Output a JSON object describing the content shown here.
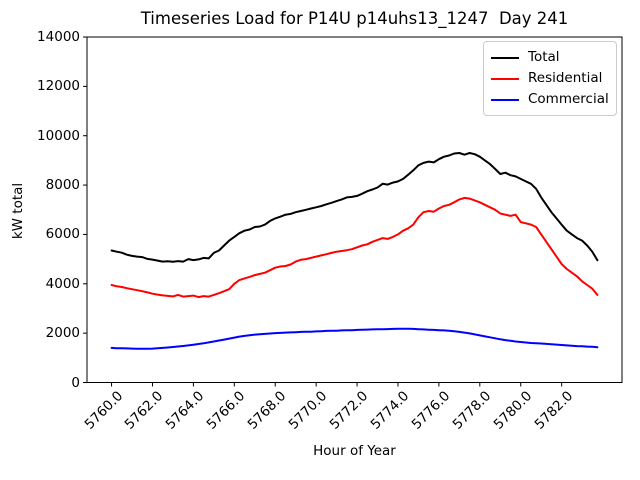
{
  "chart_data": {
    "type": "line",
    "title": "Timeseries Load for P14U p14uhs13_1247  Day 241",
    "xlabel": "Hour of Year",
    "ylabel": "kW total",
    "xlim": [
      5758.8,
      5784.95
    ],
    "ylim": [
      0,
      14000
    ],
    "grid": false,
    "legend_position": "upper right",
    "xticks": [
      5760,
      5762,
      5764,
      5766,
      5768,
      5770,
      5772,
      5774,
      5776,
      5778,
      5780,
      5782
    ],
    "xtick_labels": [
      "5760.0",
      "5762.0",
      "5764.0",
      "5766.0",
      "5768.0",
      "5770.0",
      "5772.0",
      "5774.0",
      "5776.0",
      "5778.0",
      "5780.0",
      "5782.0"
    ],
    "yticks": [
      0,
      2000,
      4000,
      6000,
      8000,
      10000,
      12000,
      14000
    ],
    "ytick_labels": [
      "0",
      "2000",
      "4000",
      "6000",
      "8000",
      "10000",
      "12000",
      "14000"
    ],
    "x": [
      5760.0,
      5760.25,
      5760.5,
      5760.75,
      5761.0,
      5761.25,
      5761.5,
      5761.75,
      5762.0,
      5762.25,
      5762.5,
      5762.75,
      5763.0,
      5763.25,
      5763.5,
      5763.75,
      5764.0,
      5764.25,
      5764.5,
      5764.75,
      5765.0,
      5765.25,
      5765.5,
      5765.75,
      5766.0,
      5766.25,
      5766.5,
      5766.75,
      5767.0,
      5767.25,
      5767.5,
      5767.75,
      5768.0,
      5768.25,
      5768.5,
      5768.75,
      5769.0,
      5769.25,
      5769.5,
      5769.75,
      5770.0,
      5770.25,
      5770.5,
      5770.75,
      5771.0,
      5771.25,
      5771.5,
      5771.75,
      5772.0,
      5772.25,
      5772.5,
      5772.75,
      5773.0,
      5773.25,
      5773.5,
      5773.75,
      5774.0,
      5774.25,
      5774.5,
      5774.75,
      5775.0,
      5775.25,
      5775.5,
      5775.75,
      5776.0,
      5776.25,
      5776.5,
      5776.75,
      5777.0,
      5777.25,
      5777.5,
      5777.75,
      5778.0,
      5778.25,
      5778.5,
      5778.75,
      5779.0,
      5779.25,
      5779.5,
      5779.75,
      5780.0,
      5780.25,
      5780.5,
      5780.75,
      5781.0,
      5781.25,
      5781.5,
      5781.75,
      5782.0,
      5782.25,
      5782.5,
      5782.75,
      5783.0,
      5783.25,
      5783.5,
      5783.75
    ],
    "series": [
      {
        "name": "Total",
        "color": "#000000",
        "values": [
          5350,
          5300,
          5260,
          5180,
          5130,
          5100,
          5080,
          5010,
          4980,
          4940,
          4900,
          4910,
          4890,
          4920,
          4900,
          5000,
          4960,
          4990,
          5050,
          5030,
          5250,
          5350,
          5550,
          5750,
          5900,
          6050,
          6150,
          6200,
          6300,
          6320,
          6400,
          6550,
          6650,
          6720,
          6800,
          6830,
          6900,
          6950,
          7000,
          7050,
          7100,
          7150,
          7220,
          7280,
          7350,
          7420,
          7500,
          7520,
          7560,
          7650,
          7750,
          7820,
          7900,
          8050,
          8020,
          8100,
          8150,
          8250,
          8420,
          8600,
          8800,
          8900,
          8950,
          8920,
          9050,
          9150,
          9200,
          9280,
          9300,
          9230,
          9300,
          9250,
          9150,
          9000,
          8850,
          8650,
          8450,
          8500,
          8400,
          8350,
          8250,
          8150,
          8050,
          7850,
          7500,
          7200,
          6900,
          6650,
          6400,
          6150,
          6000,
          5850,
          5750,
          5550,
          5300,
          4950
        ]
      },
      {
        "name": "Residential",
        "color": "#ff0000",
        "values": [
          3950,
          3900,
          3870,
          3820,
          3780,
          3740,
          3700,
          3650,
          3600,
          3560,
          3530,
          3510,
          3490,
          3550,
          3480,
          3500,
          3520,
          3460,
          3500,
          3480,
          3550,
          3620,
          3700,
          3780,
          4000,
          4150,
          4220,
          4280,
          4350,
          4400,
          4450,
          4550,
          4650,
          4700,
          4720,
          4780,
          4900,
          4970,
          5000,
          5050,
          5100,
          5150,
          5200,
          5250,
          5300,
          5330,
          5360,
          5400,
          5480,
          5550,
          5600,
          5700,
          5780,
          5850,
          5820,
          5900,
          6000,
          6150,
          6250,
          6400,
          6700,
          6900,
          6950,
          6920,
          7050,
          7150,
          7200,
          7300,
          7420,
          7480,
          7450,
          7380,
          7300,
          7200,
          7100,
          7000,
          6850,
          6800,
          6750,
          6800,
          6500,
          6450,
          6400,
          6300,
          6000,
          5700,
          5400,
          5100,
          4800,
          4600,
          4450,
          4300,
          4100,
          3950,
          3800,
          3550
        ]
      },
      {
        "name": "Commercial",
        "color": "#0000ff",
        "values": [
          1400,
          1390,
          1385,
          1380,
          1375,
          1370,
          1368,
          1370,
          1375,
          1385,
          1400,
          1420,
          1440,
          1460,
          1480,
          1505,
          1530,
          1560,
          1590,
          1625,
          1660,
          1700,
          1740,
          1780,
          1820,
          1860,
          1890,
          1915,
          1940,
          1955,
          1970,
          1985,
          2000,
          2010,
          2020,
          2030,
          2040,
          2050,
          2055,
          2060,
          2070,
          2080,
          2090,
          2095,
          2100,
          2110,
          2115,
          2120,
          2130,
          2140,
          2145,
          2150,
          2155,
          2160,
          2165,
          2170,
          2175,
          2180,
          2175,
          2170,
          2160,
          2150,
          2140,
          2130,
          2120,
          2110,
          2095,
          2080,
          2050,
          2020,
          1990,
          1950,
          1910,
          1870,
          1830,
          1790,
          1750,
          1720,
          1690,
          1660,
          1640,
          1620,
          1600,
          1590,
          1580,
          1565,
          1550,
          1535,
          1520,
          1505,
          1490,
          1475,
          1465,
          1455,
          1445,
          1430
        ]
      }
    ]
  }
}
